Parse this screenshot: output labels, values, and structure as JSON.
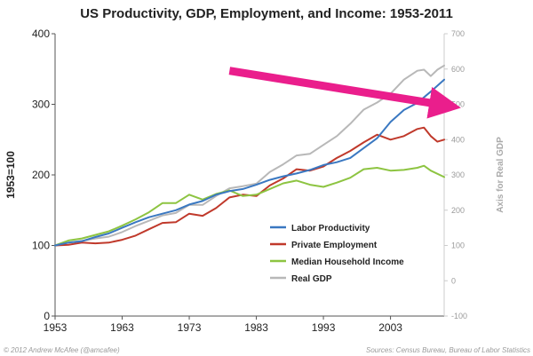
{
  "chart_data": {
    "type": "line",
    "title": "US Productivity, GDP, Employment, and Income: 1953-2011",
    "ylabel": "1953=100",
    "ylabel_right": "Axis for Real GDP",
    "ylim": [
      0,
      400
    ],
    "ylim_right": [
      -100,
      700
    ],
    "yticks": [
      "0",
      "100",
      "200",
      "300",
      "400"
    ],
    "yticks_right": [
      "-100",
      "0",
      "100",
      "200",
      "300",
      "400",
      "500",
      "600",
      "700"
    ],
    "xlim": [
      1953,
      2011
    ],
    "xticks": [
      "1953",
      "1963",
      "1973",
      "1983",
      "1993",
      "2003"
    ],
    "legend_position": "center-right",
    "series": [
      {
        "name": "Labor Productivity",
        "axis": "left",
        "color": "#3a78c1",
        "points": [
          [
            1953,
            100
          ],
          [
            1955,
            104
          ],
          [
            1957,
            106
          ],
          [
            1959,
            112
          ],
          [
            1961,
            117
          ],
          [
            1963,
            125
          ],
          [
            1965,
            133
          ],
          [
            1967,
            140
          ],
          [
            1969,
            145
          ],
          [
            1971,
            150
          ],
          [
            1973,
            158
          ],
          [
            1975,
            163
          ],
          [
            1977,
            172
          ],
          [
            1979,
            177
          ],
          [
            1981,
            180
          ],
          [
            1983,
            186
          ],
          [
            1985,
            193
          ],
          [
            1987,
            198
          ],
          [
            1989,
            202
          ],
          [
            1991,
            207
          ],
          [
            1993,
            214
          ],
          [
            1995,
            218
          ],
          [
            1997,
            224
          ],
          [
            1999,
            238
          ],
          [
            2001,
            252
          ],
          [
            2003,
            275
          ],
          [
            2005,
            292
          ],
          [
            2007,
            302
          ],
          [
            2009,
            318
          ],
          [
            2011,
            335
          ]
        ]
      },
      {
        "name": "Private Employment",
        "axis": "left",
        "color": "#c0392b",
        "points": [
          [
            1953,
            100
          ],
          [
            1955,
            101
          ],
          [
            1957,
            104
          ],
          [
            1959,
            103
          ],
          [
            1961,
            104
          ],
          [
            1963,
            108
          ],
          [
            1965,
            114
          ],
          [
            1967,
            123
          ],
          [
            1969,
            132
          ],
          [
            1971,
            133
          ],
          [
            1973,
            145
          ],
          [
            1975,
            142
          ],
          [
            1977,
            153
          ],
          [
            1979,
            168
          ],
          [
            1981,
            172
          ],
          [
            1983,
            170
          ],
          [
            1985,
            185
          ],
          [
            1987,
            195
          ],
          [
            1989,
            208
          ],
          [
            1991,
            206
          ],
          [
            1993,
            212
          ],
          [
            1995,
            224
          ],
          [
            1997,
            234
          ],
          [
            1999,
            246
          ],
          [
            2001,
            257
          ],
          [
            2003,
            250
          ],
          [
            2005,
            255
          ],
          [
            2007,
            265
          ],
          [
            2008,
            267
          ],
          [
            2009,
            255
          ],
          [
            2010,
            247
          ],
          [
            2011,
            250
          ]
        ]
      },
      {
        "name": "Median Household Income",
        "axis": "left",
        "color": "#8dc441",
        "points": [
          [
            1953,
            100
          ],
          [
            1955,
            107
          ],
          [
            1957,
            110
          ],
          [
            1959,
            115
          ],
          [
            1961,
            120
          ],
          [
            1963,
            128
          ],
          [
            1965,
            137
          ],
          [
            1967,
            147
          ],
          [
            1969,
            160
          ],
          [
            1971,
            160
          ],
          [
            1973,
            172
          ],
          [
            1975,
            165
          ],
          [
            1977,
            173
          ],
          [
            1979,
            178
          ],
          [
            1981,
            170
          ],
          [
            1983,
            172
          ],
          [
            1985,
            180
          ],
          [
            1987,
            188
          ],
          [
            1989,
            192
          ],
          [
            1991,
            186
          ],
          [
            1993,
            183
          ],
          [
            1995,
            189
          ],
          [
            1997,
            196
          ],
          [
            1999,
            208
          ],
          [
            2001,
            210
          ],
          [
            2003,
            206
          ],
          [
            2005,
            207
          ],
          [
            2007,
            210
          ],
          [
            2008,
            213
          ],
          [
            2009,
            206
          ],
          [
            2011,
            197
          ]
        ]
      },
      {
        "name": "Real GDP",
        "axis": "right",
        "color": "#b8b8b8",
        "points": [
          [
            1953,
            100
          ],
          [
            1955,
            108
          ],
          [
            1957,
            113
          ],
          [
            1959,
            120
          ],
          [
            1961,
            125
          ],
          [
            1963,
            138
          ],
          [
            1965,
            155
          ],
          [
            1967,
            170
          ],
          [
            1969,
            185
          ],
          [
            1971,
            192
          ],
          [
            1973,
            215
          ],
          [
            1975,
            215
          ],
          [
            1977,
            240
          ],
          [
            1979,
            262
          ],
          [
            1981,
            268
          ],
          [
            1983,
            275
          ],
          [
            1985,
            308
          ],
          [
            1987,
            330
          ],
          [
            1989,
            355
          ],
          [
            1991,
            360
          ],
          [
            1993,
            385
          ],
          [
            1995,
            410
          ],
          [
            1997,
            445
          ],
          [
            1999,
            485
          ],
          [
            2001,
            505
          ],
          [
            2003,
            530
          ],
          [
            2005,
            570
          ],
          [
            2007,
            595
          ],
          [
            2008,
            598
          ],
          [
            2009,
            580
          ],
          [
            2010,
            598
          ],
          [
            2011,
            610
          ]
        ]
      }
    ],
    "annotation": {
      "type": "arrow",
      "color": "#ea1e8c",
      "from": [
        1979,
        595
      ],
      "to": [
        2011,
        495
      ]
    },
    "footer_left": "© 2012 Andrew McAfee (@amcafee)",
    "footer_right": "Sources: Census Bureau, Bureau of Labor Statistics"
  }
}
